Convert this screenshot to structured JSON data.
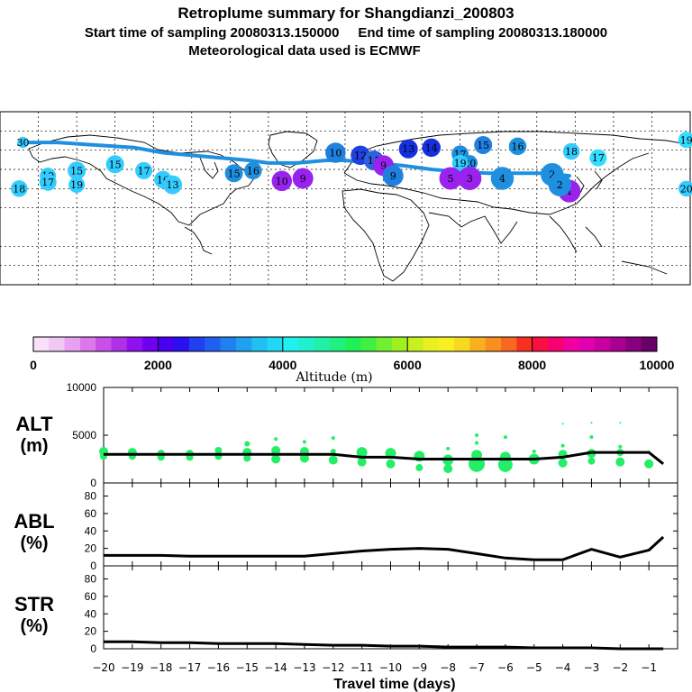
{
  "header": {
    "title": "Retroplume summary for Shangdianzi_200803",
    "sampling_line": "Start time of sampling 20080313.150000     End time of sampling 20080313.180000",
    "met_line": "Meteorological data used is ECMWF"
  },
  "colors": {
    "plume_green": "#22ee66",
    "path_blue": "#1f90e0",
    "line_black": "#000000"
  },
  "map": {
    "labels": [
      {
        "text": "30",
        "lon": -168,
        "lat": 66,
        "color": "#33ccff"
      },
      {
        "text": "19",
        "lon": 178,
        "lat": 68,
        "color": "#33ddff"
      },
      {
        "text": "15",
        "lon": 72,
        "lat": 64,
        "color": "#1f80e0"
      },
      {
        "text": "16",
        "lon": 90,
        "lat": 63,
        "color": "#1f90e0"
      },
      {
        "text": "14",
        "lon": 45,
        "lat": 62,
        "color": "#1530e0"
      },
      {
        "text": "13",
        "lon": 33,
        "lat": 61,
        "color": "#1530e0"
      },
      {
        "text": "18",
        "lon": 118,
        "lat": 59,
        "color": "#33ccff"
      },
      {
        "text": "17",
        "lon": 60,
        "lat": 57,
        "color": "#1f90e0"
      },
      {
        "text": "17",
        "lon": 132,
        "lat": 54,
        "color": "#33ddff"
      },
      {
        "text": "10",
        "lon": -5,
        "lat": 58,
        "color": "#1f80e0"
      },
      {
        "text": "12",
        "lon": 8,
        "lat": 56,
        "color": "#2040e0"
      },
      {
        "text": "11",
        "lon": 15,
        "lat": 52,
        "color": "#3060e0"
      },
      {
        "text": "9",
        "lon": 20,
        "lat": 48,
        "color": "#9922ee"
      },
      {
        "text": "20",
        "lon": 65,
        "lat": 50,
        "color": "#1f90e0"
      },
      {
        "text": "19",
        "lon": 60,
        "lat": 50,
        "color": "#33ccff"
      },
      {
        "text": "2",
        "lon": 108,
        "lat": 41,
        "color": "#1f90e0"
      },
      {
        "text": "3",
        "lon": 65,
        "lat": 38,
        "color": "#9922ee"
      },
      {
        "text": "4",
        "lon": 82,
        "lat": 38,
        "color": "#1f90e0"
      },
      {
        "text": "5",
        "lon": 55,
        "lat": 38,
        "color": "#9922ee"
      },
      {
        "text": "9",
        "lon": 25,
        "lat": 40,
        "color": "#1f80e0"
      },
      {
        "text": "1",
        "lon": 117,
        "lat": 28,
        "color": "#9922ee"
      },
      {
        "text": "2",
        "lon": 112,
        "lat": 33,
        "color": "#1f90e0"
      },
      {
        "text": "19",
        "lon": -155,
        "lat": 40,
        "color": "#33ccff"
      },
      {
        "text": "15",
        "lon": -140,
        "lat": 44,
        "color": "#33ccff"
      },
      {
        "text": "17",
        "lon": -155,
        "lat": 35,
        "color": "#33ccff"
      },
      {
        "text": "19",
        "lon": -140,
        "lat": 33,
        "color": "#33ccff"
      },
      {
        "text": "18",
        "lon": -170,
        "lat": 30,
        "color": "#33ccff"
      },
      {
        "text": "15",
        "lon": -120,
        "lat": 49,
        "color": "#33ccff"
      },
      {
        "text": "17",
        "lon": -105,
        "lat": 44,
        "color": "#33ccff"
      },
      {
        "text": "16",
        "lon": -95,
        "lat": 37,
        "color": "#33ccff"
      },
      {
        "text": "13",
        "lon": -90,
        "lat": 33,
        "color": "#33ccff"
      },
      {
        "text": "15",
        "lon": -58,
        "lat": 42,
        "color": "#1f90e0"
      },
      {
        "text": "16",
        "lon": -48,
        "lat": 44,
        "color": "#1f90e0"
      },
      {
        "text": "10",
        "lon": -33,
        "lat": 36,
        "color": "#9922ee"
      },
      {
        "text": "9",
        "lon": -22,
        "lat": 38,
        "color": "#9922ee"
      },
      {
        "text": "20",
        "lon": 178,
        "lat": 30,
        "color": "#33ccff"
      }
    ]
  },
  "colorbar": {
    "tick_labels": [
      "0",
      "2000",
      "4000",
      "6000",
      "8000",
      "10000"
    ],
    "title": "Altitude (m)",
    "colors": [
      "#f8e0f8",
      "#f0c8f4",
      "#e8a0f0",
      "#dc78ec",
      "#c850e8",
      "#b030e8",
      "#9010ee",
      "#7000f0",
      "#4a00f0",
      "#2a10f0",
      "#2040f0",
      "#2060f0",
      "#2080f0",
      "#20a0f0",
      "#20c0f4",
      "#20d8f4",
      "#20f0f0",
      "#20f0d0",
      "#20f0a8",
      "#20f080",
      "#20f058",
      "#40f040",
      "#70f030",
      "#a0f020",
      "#c8f020",
      "#e8f020",
      "#f8f020",
      "#f8d820",
      "#f8b020",
      "#f89020",
      "#f86820",
      "#f83020",
      "#f81040",
      "#f80070",
      "#f000a0",
      "#e000b0",
      "#c800a0",
      "#a80090",
      "#880080",
      "#680068"
    ]
  },
  "chart_data": [
    {
      "type": "line",
      "panel": "ALT",
      "label_line1": "ALT",
      "label_line2": "(m)",
      "x": [
        -20,
        -19,
        -18,
        -17,
        -16,
        -15,
        -14,
        -13,
        -12,
        -11,
        -10,
        -9,
        -8,
        -7,
        -6,
        -5,
        -4,
        -3,
        -2,
        -1,
        -0.5
      ],
      "series": [
        {
          "name": "mean altitude",
          "values": [
            3000,
            3000,
            3000,
            3000,
            3000,
            3000,
            3000,
            3000,
            3000,
            2700,
            2700,
            2500,
            2500,
            2500,
            2500,
            2500,
            2700,
            3200,
            3200,
            3200,
            2000
          ]
        }
      ],
      "ylim": [
        0,
        10000
      ],
      "yticks": [
        "0",
        "5000",
        "10000"
      ],
      "xlim": [
        -20,
        0
      ],
      "plume_points": [
        {
          "x": -20,
          "y": 3300,
          "r": 5
        },
        {
          "x": -20,
          "y": 2800,
          "r": 4
        },
        {
          "x": -19,
          "y": 3200,
          "r": 5
        },
        {
          "x": -19,
          "y": 2800,
          "r": 4
        },
        {
          "x": -18,
          "y": 3100,
          "r": 4
        },
        {
          "x": -18,
          "y": 2700,
          "r": 4
        },
        {
          "x": -17,
          "y": 3100,
          "r": 4
        },
        {
          "x": -17,
          "y": 2700,
          "r": 4
        },
        {
          "x": -16,
          "y": 3400,
          "r": 4
        },
        {
          "x": -16,
          "y": 2800,
          "r": 4
        },
        {
          "x": -15,
          "y": 4100,
          "r": 3
        },
        {
          "x": -15,
          "y": 3200,
          "r": 5
        },
        {
          "x": -15,
          "y": 2600,
          "r": 4
        },
        {
          "x": -14,
          "y": 4600,
          "r": 2
        },
        {
          "x": -14,
          "y": 3400,
          "r": 5
        },
        {
          "x": -14,
          "y": 2500,
          "r": 5
        },
        {
          "x": -13,
          "y": 4300,
          "r": 2
        },
        {
          "x": -13,
          "y": 3300,
          "r": 5
        },
        {
          "x": -13,
          "y": 2600,
          "r": 5
        },
        {
          "x": -12,
          "y": 4700,
          "r": 2
        },
        {
          "x": -12,
          "y": 3300,
          "r": 3
        },
        {
          "x": -12,
          "y": 2400,
          "r": 5
        },
        {
          "x": -11,
          "y": 3200,
          "r": 6
        },
        {
          "x": -11,
          "y": 2200,
          "r": 5
        },
        {
          "x": -10,
          "y": 3100,
          "r": 6
        },
        {
          "x": -10,
          "y": 2000,
          "r": 5
        },
        {
          "x": -9,
          "y": 2800,
          "r": 6
        },
        {
          "x": -9,
          "y": 1600,
          "r": 4
        },
        {
          "x": -8,
          "y": 3600,
          "r": 2
        },
        {
          "x": -8,
          "y": 2400,
          "r": 6
        },
        {
          "x": -8,
          "y": 1500,
          "r": 5
        },
        {
          "x": -7,
          "y": 5000,
          "r": 2
        },
        {
          "x": -7,
          "y": 4200,
          "r": 2
        },
        {
          "x": -7,
          "y": 2900,
          "r": 6
        },
        {
          "x": -7,
          "y": 2000,
          "r": 9
        },
        {
          "x": -6,
          "y": 4800,
          "r": 2
        },
        {
          "x": -6,
          "y": 2700,
          "r": 6
        },
        {
          "x": -6,
          "y": 1900,
          "r": 8
        },
        {
          "x": -5,
          "y": 3300,
          "r": 2
        },
        {
          "x": -5,
          "y": 2500,
          "r": 6
        },
        {
          "x": -4,
          "y": 6200,
          "r": 1
        },
        {
          "x": -4,
          "y": 3900,
          "r": 2
        },
        {
          "x": -4,
          "y": 3000,
          "r": 5
        },
        {
          "x": -4,
          "y": 2100,
          "r": 5
        },
        {
          "x": -3,
          "y": 6300,
          "r": 1
        },
        {
          "x": -3,
          "y": 4800,
          "r": 2
        },
        {
          "x": -3,
          "y": 3100,
          "r": 5
        },
        {
          "x": -3,
          "y": 2300,
          "r": 4
        },
        {
          "x": -2,
          "y": 6300,
          "r": 1
        },
        {
          "x": -2,
          "y": 3800,
          "r": 2
        },
        {
          "x": -2,
          "y": 3200,
          "r": 4
        },
        {
          "x": -2,
          "y": 2200,
          "r": 5
        },
        {
          "x": -1,
          "y": 3300,
          "r": 1
        },
        {
          "x": -1,
          "y": 2000,
          "r": 5
        }
      ]
    },
    {
      "type": "line",
      "panel": "ABL",
      "label_line1": "ABL",
      "label_line2": "(%)",
      "x": [
        -20,
        -19,
        -18,
        -17,
        -16,
        -15,
        -14,
        -13,
        -12,
        -11,
        -10,
        -9,
        -8,
        -7,
        -6,
        -5,
        -4,
        -3,
        -2,
        -1,
        -0.5
      ],
      "series": [
        {
          "name": "ABL fraction",
          "values": [
            12,
            12,
            12,
            11,
            11,
            11,
            11,
            11,
            14,
            17,
            19,
            20,
            19,
            14,
            9,
            7,
            7,
            19,
            10,
            18,
            33
          ]
        }
      ],
      "ylim": [
        0,
        95
      ],
      "yticks": [
        "0",
        "20",
        "40",
        "60",
        "80"
      ],
      "xlim": [
        -20,
        0
      ]
    },
    {
      "type": "line",
      "panel": "STR",
      "label_line1": "STR",
      "label_line2": "(%)",
      "x": [
        -20,
        -19,
        -18,
        -17,
        -16,
        -15,
        -14,
        -13,
        -12,
        -11,
        -10,
        -9,
        -8,
        -7,
        -6,
        -5,
        -4,
        -3,
        -2,
        -1,
        -0.5
      ],
      "series": [
        {
          "name": "stratospheric fraction",
          "values": [
            8,
            8,
            7,
            7,
            6,
            6,
            6,
            5,
            4,
            4,
            3,
            3,
            2,
            2,
            2,
            1,
            1,
            1,
            0,
            0,
            0
          ]
        }
      ],
      "ylim": [
        0,
        95
      ],
      "yticks": [
        "0",
        "20",
        "40",
        "60",
        "80"
      ],
      "xlim": [
        -20,
        0
      ],
      "xticks": [
        "−20",
        "−19",
        "−18",
        "−17",
        "−16",
        "−15",
        "−14",
        "−13",
        "−12",
        "−11",
        "−10",
        "−9",
        "−8",
        "−7",
        "−6",
        "−5",
        "−4",
        "−3",
        "−2",
        "−1"
      ],
      "xlabel": "Travel time (days)"
    }
  ]
}
